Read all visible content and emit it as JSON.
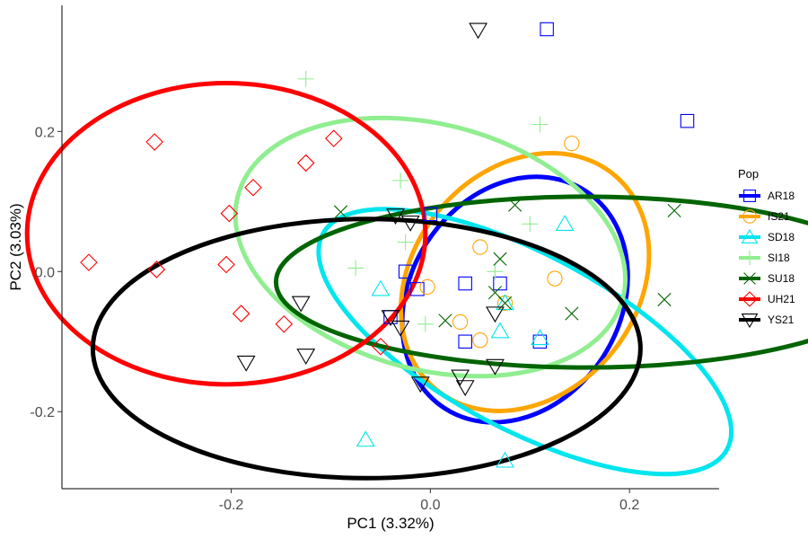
{
  "chart_data": {
    "type": "scatter",
    "xlabel": "PC1 (3.32%)",
    "ylabel": "PC2 (3.03%)",
    "xlim": [
      -0.37,
      0.29
    ],
    "ylim": [
      -0.31,
      0.38
    ],
    "xticks": [
      -0.2,
      0.0,
      0.2
    ],
    "yticks": [
      -0.2,
      0.0,
      0.2
    ],
    "xtick_labels": [
      "-0.2",
      "0.0",
      "0.2"
    ],
    "ytick_labels": [
      "-0.2",
      "0.0",
      "0.2"
    ],
    "grid": false,
    "legend_title": "Pop",
    "legend_position": "right",
    "series": [
      {
        "name": "AR18",
        "color": "#0000ff",
        "marker": "square",
        "ellipse": {
          "cx": 0.085,
          "cy": -0.04,
          "rx": 0.13,
          "ry": 0.15,
          "angle_deg": 57
        },
        "x": [
          0.117,
          0.258,
          0.0,
          -0.025,
          0.035,
          0.07,
          0.035,
          -0.04,
          -0.013,
          0.11
        ],
        "y": [
          0.346,
          0.215,
          0.082,
          0.0,
          -0.017,
          -0.017,
          -0.1,
          -0.065,
          -0.025,
          -0.1
        ]
      },
      {
        "name": "IS21",
        "color": "#ffa500",
        "marker": "circle",
        "ellipse": {
          "cx": 0.095,
          "cy": -0.015,
          "rx": 0.14,
          "ry": 0.16,
          "angle_deg": 50
        },
        "x": [
          0.142,
          0.05,
          -0.003,
          0.125,
          0.075,
          0.03,
          0.05
        ],
        "y": [
          0.183,
          0.035,
          -0.022,
          -0.01,
          -0.045,
          -0.072,
          -0.098
        ]
      },
      {
        "name": "SD18",
        "color": "#00e5ee",
        "marker": "triangle-up",
        "ellipse": {
          "cx": 0.095,
          "cy": -0.1,
          "rx": 0.23,
          "ry": 0.125,
          "angle_deg": -28
        },
        "x": [
          -0.05,
          0.135,
          0.075,
          0.11,
          0.07,
          -0.065,
          0.075
        ],
        "y": [
          -0.025,
          0.068,
          -0.045,
          -0.095,
          -0.085,
          -0.24,
          -0.27
        ]
      },
      {
        "name": "SI18",
        "color": "#90ee90",
        "marker": "plus",
        "ellipse": {
          "cx": 0.0,
          "cy": 0.035,
          "rx": 0.2,
          "ry": 0.175,
          "angle_deg": -15
        },
        "x": [
          -0.125,
          0.11,
          -0.03,
          0.1,
          -0.025,
          -0.075,
          0.065,
          -0.005
        ],
        "y": [
          0.275,
          0.21,
          0.13,
          0.068,
          0.042,
          0.005,
          0.0,
          -0.075
        ]
      },
      {
        "name": "SU18",
        "color": "#006400",
        "marker": "x",
        "ellipse": {
          "cx": 0.155,
          "cy": -0.015,
          "rx": 0.31,
          "ry": 0.122,
          "angle_deg": 0
        },
        "x": [
          -0.09,
          0.085,
          0.245,
          0.07,
          0.065,
          0.015,
          0.142,
          0.235,
          0.075
        ],
        "y": [
          0.085,
          0.095,
          0.087,
          0.018,
          -0.03,
          -0.07,
          -0.06,
          -0.04,
          -0.045
        ]
      },
      {
        "name": "UH21",
        "color": "#ff0000",
        "marker": "diamond",
        "ellipse": {
          "cx": -0.205,
          "cy": 0.054,
          "rx": 0.2,
          "ry": 0.215,
          "angle_deg": 0
        },
        "x": [
          -0.277,
          -0.097,
          -0.125,
          -0.178,
          -0.202,
          -0.343,
          -0.275,
          -0.205,
          -0.19,
          -0.147,
          -0.05
        ],
        "y": [
          0.185,
          0.19,
          0.155,
          0.12,
          0.083,
          0.013,
          0.003,
          0.01,
          -0.06,
          -0.075,
          -0.107
        ]
      },
      {
        "name": "YS21",
        "color": "#000000",
        "marker": "triangle-down",
        "ellipse": {
          "cx": -0.064,
          "cy": -0.11,
          "rx": 0.275,
          "ry": 0.185,
          "angle_deg": 0
        },
        "x": [
          0.048,
          -0.035,
          -0.02,
          -0.13,
          -0.04,
          -0.03,
          -0.125,
          -0.185,
          0.065,
          0.03,
          0.035,
          -0.01,
          0.065
        ],
        "y": [
          0.345,
          0.08,
          0.07,
          -0.045,
          -0.065,
          -0.08,
          -0.12,
          -0.13,
          -0.135,
          -0.15,
          -0.165,
          -0.16,
          -0.06
        ]
      }
    ]
  }
}
